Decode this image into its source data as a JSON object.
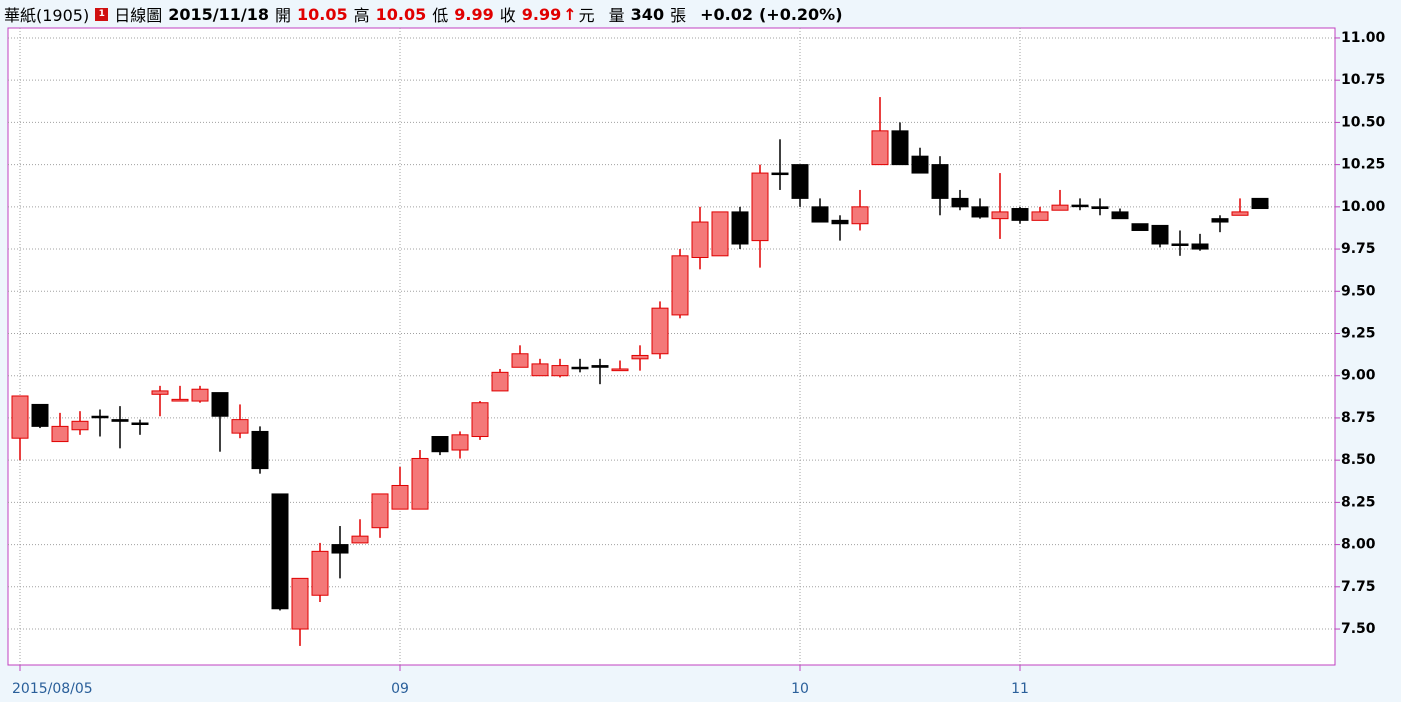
{
  "header": {
    "stock": "華紙(1905)",
    "period": "日線圖",
    "date": "2015/11/18",
    "open_label": "開",
    "open": 10.05,
    "high_label": "高",
    "high": 10.05,
    "low_label": "低",
    "low": 9.99,
    "close_label": "收",
    "close": 9.99,
    "arrow": "↑",
    "unit": "元",
    "volume_label": "量",
    "volume": 340,
    "volume_unit": "張",
    "change": "+0.02",
    "change_pct": "(+0.20%)"
  },
  "chart_data": {
    "type": "candlestick",
    "categories": [
      "2015/08/05",
      null,
      null,
      null,
      null,
      null,
      null,
      null,
      null,
      null,
      null,
      null,
      null,
      null,
      null,
      null,
      null,
      null,
      null,
      "09",
      null,
      null,
      null,
      null,
      null,
      null,
      null,
      null,
      null,
      null,
      null,
      null,
      null,
      null,
      null,
      null,
      null,
      null,
      null,
      "10",
      null,
      null,
      null,
      null,
      null,
      null,
      null,
      null,
      null,
      null,
      "11",
      null,
      null,
      null,
      null,
      null,
      null,
      null,
      null,
      null,
      null,
      null,
      null
    ],
    "open": [
      8.63,
      8.83,
      8.61,
      8.68,
      8.76,
      8.74,
      8.72,
      8.89,
      8.85,
      8.85,
      8.9,
      8.66,
      8.67,
      8.3,
      7.5,
      7.7,
      8.0,
      8.01,
      8.1,
      8.21,
      8.21,
      8.64,
      8.56,
      8.64,
      8.91,
      9.05,
      9.0,
      9.0,
      9.05,
      9.06,
      9.03,
      9.1,
      9.13,
      9.36,
      9.7,
      9.71,
      9.97,
      9.8,
      10.2,
      10.25,
      10.0,
      9.92,
      9.9,
      10.25,
      10.45,
      10.3,
      10.25,
      10.05,
      10.0,
      9.93,
      9.99,
      9.92,
      9.98,
      10.01,
      10.0,
      9.97,
      9.9,
      9.89,
      9.78,
      9.78,
      9.93,
      9.95,
      10.05
    ],
    "high": [
      8.88,
      8.83,
      8.78,
      8.79,
      8.8,
      8.82,
      8.74,
      8.94,
      8.94,
      8.94,
      8.9,
      8.83,
      8.7,
      8.3,
      7.8,
      8.01,
      8.11,
      8.15,
      8.3,
      8.46,
      8.56,
      8.64,
      8.67,
      8.85,
      9.04,
      9.18,
      9.1,
      9.1,
      9.1,
      9.1,
      9.09,
      9.18,
      9.44,
      9.75,
      10.0,
      9.97,
      10.0,
      10.25,
      10.4,
      10.25,
      10.05,
      9.95,
      10.1,
      10.65,
      10.5,
      10.35,
      10.3,
      10.1,
      10.05,
      10.2,
      10.0,
      10.0,
      10.1,
      10.05,
      10.05,
      9.99,
      9.9,
      9.89,
      9.86,
      9.84,
      9.95,
      10.05,
      10.05
    ],
    "low": [
      8.5,
      8.69,
      8.61,
      8.65,
      8.64,
      8.57,
      8.65,
      8.76,
      8.85,
      8.84,
      8.55,
      8.63,
      8.42,
      7.61,
      7.4,
      7.66,
      7.8,
      8.01,
      8.04,
      8.21,
      8.21,
      8.53,
      8.51,
      8.62,
      8.91,
      9.05,
      9.0,
      8.99,
      9.02,
      8.95,
      9.03,
      9.03,
      9.1,
      9.34,
      9.63,
      9.71,
      9.75,
      9.64,
      10.1,
      10.0,
      9.91,
      9.8,
      9.86,
      10.25,
      10.25,
      10.2,
      9.95,
      9.98,
      9.93,
      9.81,
      9.9,
      9.92,
      9.98,
      9.98,
      9.95,
      9.93,
      9.86,
      9.76,
      9.71,
      9.74,
      9.85,
      9.95,
      9.99
    ],
    "close": [
      8.88,
      8.7,
      8.7,
      8.73,
      8.76,
      8.73,
      8.72,
      8.91,
      8.86,
      8.92,
      8.76,
      8.74,
      8.45,
      7.62,
      7.8,
      7.96,
      7.95,
      8.05,
      8.3,
      8.35,
      8.51,
      8.55,
      8.65,
      8.84,
      9.02,
      9.13,
      9.07,
      9.06,
      9.05,
      9.05,
      9.04,
      9.12,
      9.4,
      9.71,
      9.91,
      9.97,
      9.78,
      10.2,
      10.2,
      10.05,
      9.91,
      9.9,
      10.0,
      10.45,
      10.25,
      10.2,
      10.05,
      10.0,
      9.94,
      9.97,
      9.92,
      9.97,
      10.01,
      10.01,
      9.99,
      9.93,
      9.86,
      9.78,
      9.78,
      9.75,
      9.91,
      9.97,
      9.99
    ],
    "up_color": "#f47878",
    "up_edge": "#e00000",
    "down_color": "#000000",
    "ylim": [
      7.287,
      11.059
    ],
    "yticks": [
      {
        "value": 7.5,
        "label": "7.50"
      },
      7.75,
      {
        "value": 8,
        "label": "8.00"
      },
      8.25,
      {
        "value": 8.5,
        "label": "8.50"
      },
      8.75,
      {
        "value": 9,
        "label": "9.00"
      },
      9.25,
      {
        "value": 9.5,
        "label": "9.50"
      },
      9.75,
      {
        "value": 10,
        "label": "10.00"
      },
      10.25,
      {
        "value": 10.5,
        "label": "10.50"
      },
      10.75,
      {
        "value": 11,
        "label": "11.00"
      }
    ],
    "grid": true
  }
}
